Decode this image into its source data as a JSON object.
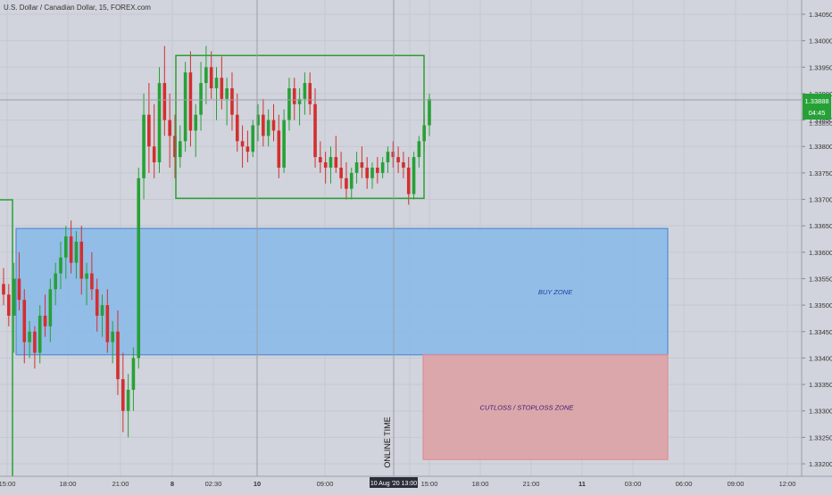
{
  "symbol_title": "U.S. Dollar / Canadian Dollar, 15, FOREX.com",
  "colors": {
    "background": "#d1d4dc",
    "grid": "#c5c8d0",
    "up": "#26a136",
    "down": "#d32f2f",
    "buy_zone_fill": "#8fbce8",
    "buy_zone_border": "#3d7dd6",
    "stop_zone_fill": "#dca7ab",
    "stop_zone_border": "#e0868e",
    "range_box": "#2e9e33",
    "price_tag": "#26a136"
  },
  "annotations": {
    "buy_zone_label": "BUY ZONE",
    "stop_zone_label": "CUTLOSS / STOPLOSS ZONE",
    "vertical_note": "ONLINE TIME"
  },
  "current_price": {
    "value": "1.33888",
    "countdown": "04:45",
    "hidden_label": "1.33850"
  },
  "crosshair_time_label": "10 Aug '20   13:00",
  "chart_data": {
    "type": "candlestick",
    "title": "U.S. Dollar / Canadian Dollar, 15, FOREX.com",
    "y_axis": {
      "range": [
        1.3319,
        1.3406
      ],
      "tick_labels": [
        "1.34050",
        "1.34000",
        "1.33950",
        "1.33900",
        "1.33850",
        "1.33800",
        "1.33750",
        "1.33700",
        "1.33650",
        "1.33600",
        "1.33550",
        "1.33500",
        "1.33450",
        "1.33400",
        "1.33350",
        "1.33300",
        "1.33250",
        "1.33200"
      ]
    },
    "x_axis": {
      "tick_labels": [
        "15:00",
        "18:00",
        "21:00",
        "8",
        "02:30",
        "10",
        "09:00",
        "13:00",
        "15:00",
        "18:00",
        "21:00",
        "11",
        "03:00",
        "06:00",
        "09:00",
        "12:00"
      ]
    },
    "zones": [
      {
        "name": "BUY ZONE",
        "price_top": 1.33645,
        "price_bottom": 1.33406
      },
      {
        "name": "CUTLOSS / STOPLOSS ZONE",
        "price_top": 1.33406,
        "price_bottom": 1.33208
      }
    ],
    "range_box": {
      "price_top": 1.33972,
      "price_bottom": 1.33702
    },
    "candles": [
      [
        1.3354,
        1.3357,
        1.335,
        1.3352
      ],
      [
        1.3352,
        1.3354,
        1.3346,
        1.3348
      ],
      [
        1.3348,
        1.3358,
        1.3341,
        1.3355
      ],
      [
        1.3355,
        1.336,
        1.3349,
        1.3351
      ],
      [
        1.3351,
        1.3353,
        1.3339,
        1.3343
      ],
      [
        1.3343,
        1.3347,
        1.334,
        1.3345
      ],
      [
        1.3345,
        1.3346,
        1.3338,
        1.3341
      ],
      [
        1.3341,
        1.335,
        1.3339,
        1.3348
      ],
      [
        1.3348,
        1.3352,
        1.3344,
        1.3346
      ],
      [
        1.3346,
        1.3355,
        1.3343,
        1.3353
      ],
      [
        1.3353,
        1.3358,
        1.335,
        1.3356
      ],
      [
        1.3356,
        1.3362,
        1.3353,
        1.3359
      ],
      [
        1.3359,
        1.3365,
        1.3355,
        1.3363
      ],
      [
        1.3363,
        1.3366,
        1.3356,
        1.3358
      ],
      [
        1.3358,
        1.3364,
        1.3355,
        1.3362
      ],
      [
        1.3362,
        1.3365,
        1.3352,
        1.3355
      ],
      [
        1.3355,
        1.3358,
        1.335,
        1.3356
      ],
      [
        1.3356,
        1.336,
        1.3351,
        1.3353
      ],
      [
        1.3353,
        1.3355,
        1.3345,
        1.3348
      ],
      [
        1.3348,
        1.3352,
        1.3344,
        1.335
      ],
      [
        1.335,
        1.3353,
        1.3341,
        1.3343
      ],
      [
        1.3343,
        1.3347,
        1.3339,
        1.3345
      ],
      [
        1.3345,
        1.3349,
        1.3333,
        1.3336
      ],
      [
        1.3336,
        1.3341,
        1.3326,
        1.333
      ],
      [
        1.333,
        1.3337,
        1.3325,
        1.3334
      ],
      [
        1.3334,
        1.3342,
        1.333,
        1.334
      ],
      [
        1.334,
        1.3376,
        1.3338,
        1.3374
      ],
      [
        1.3374,
        1.339,
        1.337,
        1.3386
      ],
      [
        1.3386,
        1.3392,
        1.3375,
        1.338
      ],
      [
        1.338,
        1.3388,
        1.3374,
        1.3377
      ],
      [
        1.3377,
        1.3395,
        1.3375,
        1.3392
      ],
      [
        1.3392,
        1.3399,
        1.3382,
        1.3385
      ],
      [
        1.3385,
        1.339,
        1.3376,
        1.3382
      ],
      [
        1.3382,
        1.3386,
        1.3374,
        1.3378
      ],
      [
        1.3378,
        1.3384,
        1.3376,
        1.3381
      ],
      [
        1.3381,
        1.3396,
        1.3379,
        1.3394
      ],
      [
        1.3394,
        1.3398,
        1.338,
        1.3383
      ],
      [
        1.3383,
        1.3388,
        1.3378,
        1.3386
      ],
      [
        1.3386,
        1.3396,
        1.3383,
        1.3392
      ],
      [
        1.3392,
        1.3399,
        1.3388,
        1.3395
      ],
      [
        1.3395,
        1.3398,
        1.3389,
        1.3391
      ],
      [
        1.3391,
        1.3395,
        1.3385,
        1.3393
      ],
      [
        1.3393,
        1.3397,
        1.3387,
        1.3389
      ],
      [
        1.3389,
        1.3393,
        1.3384,
        1.3391
      ],
      [
        1.3391,
        1.3394,
        1.3383,
        1.3386
      ],
      [
        1.3386,
        1.339,
        1.3379,
        1.3381
      ],
      [
        1.3381,
        1.3384,
        1.3376,
        1.338
      ],
      [
        1.338,
        1.3383,
        1.3377,
        1.3379
      ],
      [
        1.3379,
        1.3385,
        1.3378,
        1.3384
      ],
      [
        1.3384,
        1.3388,
        1.3381,
        1.3386
      ],
      [
        1.3386,
        1.3389,
        1.338,
        1.3382
      ],
      [
        1.3382,
        1.3387,
        1.338,
        1.3385
      ],
      [
        1.3385,
        1.3388,
        1.3381,
        1.3383
      ],
      [
        1.3383,
        1.3386,
        1.3374,
        1.3376
      ],
      [
        1.3376,
        1.3387,
        1.3375,
        1.3385
      ],
      [
        1.3385,
        1.3393,
        1.3383,
        1.3391
      ],
      [
        1.3391,
        1.3393,
        1.3385,
        1.3388
      ],
      [
        1.3388,
        1.3391,
        1.3384,
        1.3389
      ],
      [
        1.3389,
        1.3394,
        1.3386,
        1.3392
      ],
      [
        1.3392,
        1.3394,
        1.3386,
        1.3388
      ],
      [
        1.3388,
        1.3391,
        1.3376,
        1.3378
      ],
      [
        1.3378,
        1.3381,
        1.3375,
        1.3377
      ],
      [
        1.3377,
        1.3379,
        1.3373,
        1.3376
      ],
      [
        1.3376,
        1.338,
        1.3373,
        1.3378
      ],
      [
        1.3378,
        1.3382,
        1.3375,
        1.3376
      ],
      [
        1.3376,
        1.3379,
        1.3372,
        1.3374
      ],
      [
        1.3374,
        1.3377,
        1.337,
        1.3372
      ],
      [
        1.3372,
        1.3376,
        1.337,
        1.3375
      ],
      [
        1.3375,
        1.3379,
        1.3373,
        1.3377
      ],
      [
        1.3377,
        1.338,
        1.3374,
        1.3376
      ],
      [
        1.3376,
        1.3378,
        1.3372,
        1.3374
      ],
      [
        1.3374,
        1.3377,
        1.3372,
        1.3376
      ],
      [
        1.3376,
        1.3378,
        1.3373,
        1.3375
      ],
      [
        1.3375,
        1.3378,
        1.3374,
        1.3377
      ],
      [
        1.3377,
        1.338,
        1.3375,
        1.3379
      ],
      [
        1.3379,
        1.3381,
        1.3376,
        1.3378
      ],
      [
        1.3378,
        1.338,
        1.3375,
        1.3377
      ],
      [
        1.3377,
        1.3379,
        1.3374,
        1.3376
      ],
      [
        1.3376,
        1.3378,
        1.3369,
        1.3371
      ],
      [
        1.3371,
        1.3379,
        1.337,
        1.3378
      ],
      [
        1.3378,
        1.3382,
        1.3376,
        1.3381
      ],
      [
        1.3381,
        1.3386,
        1.3379,
        1.3384
      ],
      [
        1.3384,
        1.339,
        1.3382,
        1.3389
      ]
    ]
  }
}
